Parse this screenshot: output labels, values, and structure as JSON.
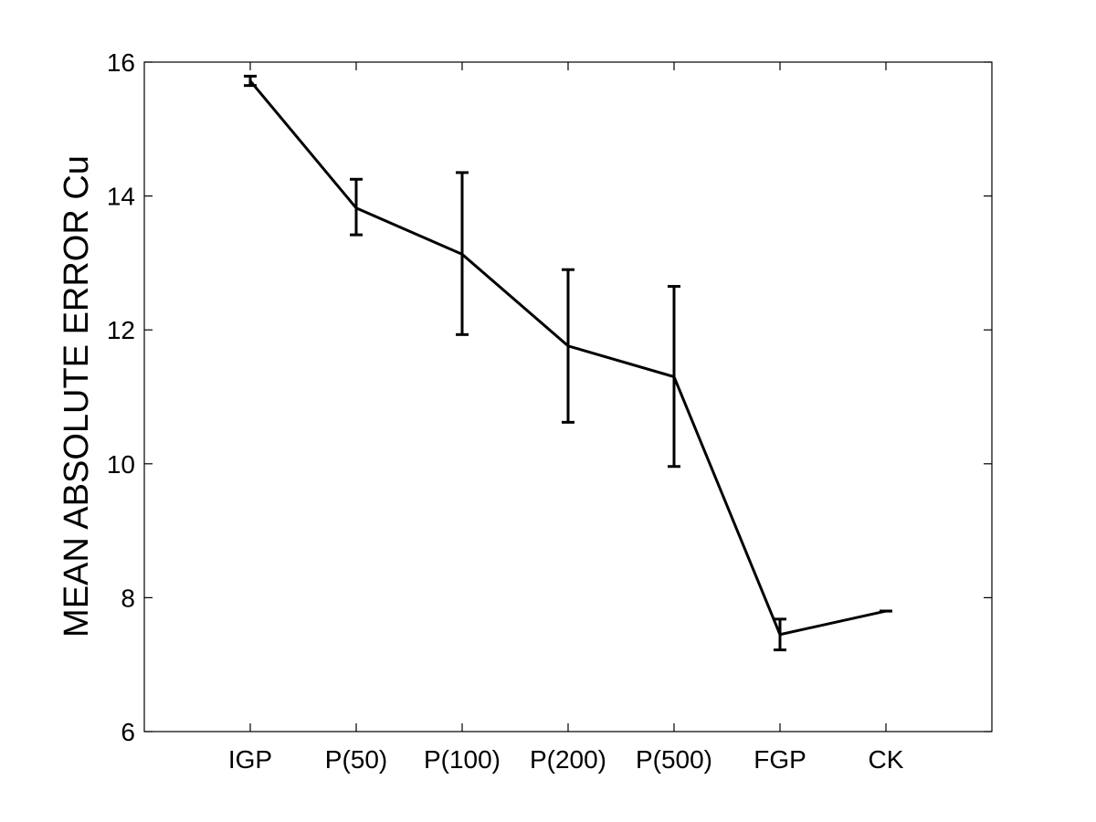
{
  "chart_data": {
    "type": "line",
    "title": "",
    "xlabel": "",
    "ylabel": "MEAN ABSOLUTE ERROR   Cu",
    "categories": [
      "IGP",
      "P(50)",
      "P(100)",
      "P(200)",
      "P(500)",
      "FGP",
      "CK"
    ],
    "values": [
      15.72,
      13.82,
      13.13,
      11.76,
      11.3,
      7.45,
      7.8
    ],
    "error_low": [
      15.65,
      13.42,
      11.93,
      10.62,
      9.96,
      7.22,
      7.8
    ],
    "error_high": [
      15.79,
      14.25,
      14.35,
      12.9,
      12.65,
      7.68,
      7.8
    ],
    "ylim": [
      6,
      16
    ],
    "xlim": [
      0,
      8
    ],
    "yticks": [
      6,
      8,
      10,
      12,
      14,
      16
    ],
    "grid": false,
    "legend": "none",
    "line_color": "#000000"
  }
}
